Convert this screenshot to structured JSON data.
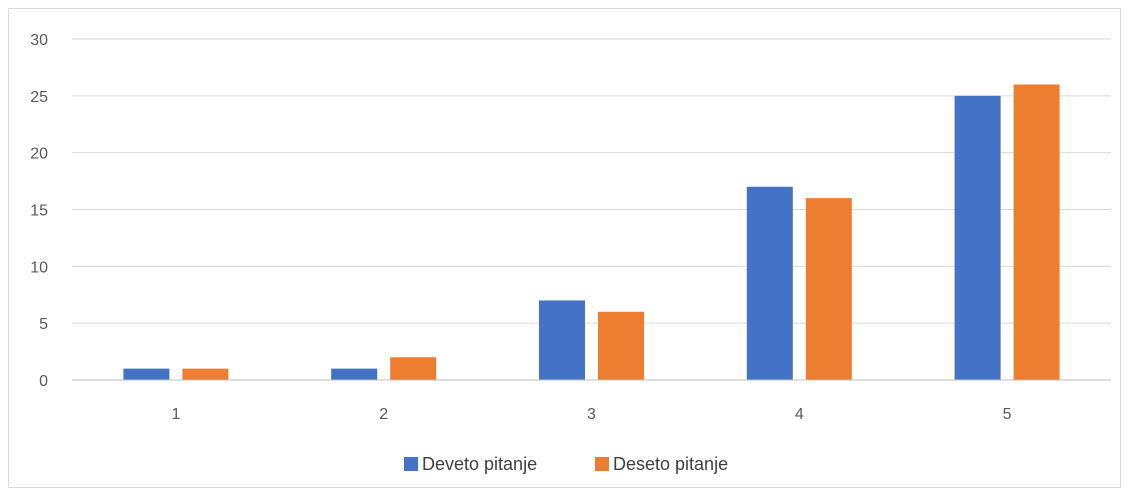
{
  "chart_data": {
    "type": "bar",
    "categories": [
      "1",
      "2",
      "3",
      "4",
      "5"
    ],
    "series": [
      {
        "name": "Deveto pitanje",
        "color": "#4472c4",
        "values": [
          1,
          1,
          7,
          17,
          25
        ]
      },
      {
        "name": "Deseto pitanje",
        "color": "#ed7d31",
        "values": [
          1,
          2,
          6,
          16,
          26
        ]
      }
    ],
    "y_ticks": [
      "0",
      "5",
      "10",
      "15",
      "20",
      "25",
      "30"
    ],
    "ylim": [
      0,
      30
    ],
    "grid": true,
    "legend_position": "bottom"
  }
}
